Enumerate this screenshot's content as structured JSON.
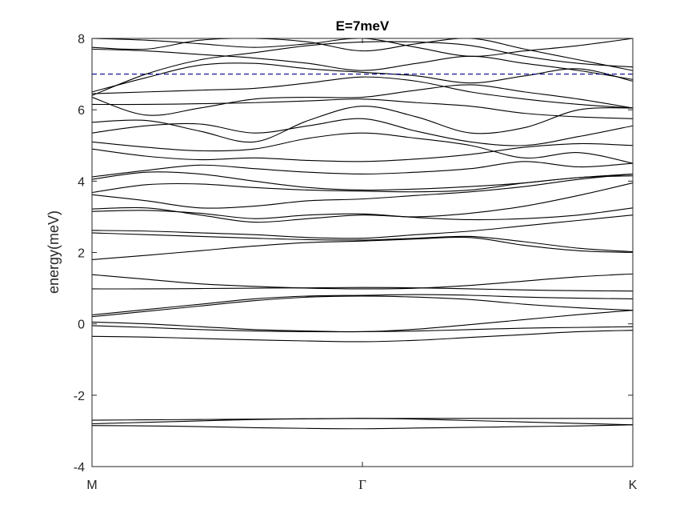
{
  "chart_data": {
    "type": "line",
    "title": "E=7meV",
    "xlabel": "",
    "ylabel": "energy(meV)",
    "ylim": [
      -4,
      8
    ],
    "yticks": [
      "-4",
      "-2",
      "0",
      "2",
      "4",
      "6",
      "8"
    ],
    "x_tick_labels": [
      "M",
      "Γ",
      "K"
    ],
    "xlim": [
      0,
      1
    ],
    "grid": false,
    "legend": "none",
    "reference_line": {
      "value": 7,
      "style": "dashed",
      "color": "#00008b"
    },
    "line_color": "#000000",
    "x": [
      0,
      0.1,
      0.2,
      0.3,
      0.4,
      0.5,
      0.6,
      0.7,
      0.8,
      0.9,
      1.0
    ],
    "series": [
      {
        "values": [
          -2.85,
          -2.86,
          -2.88,
          -2.91,
          -2.93,
          -2.94,
          -2.92,
          -2.9,
          -2.88,
          -2.86,
          -2.83
        ]
      },
      {
        "values": [
          -2.8,
          -2.76,
          -2.72,
          -2.68,
          -2.66,
          -2.65,
          -2.67,
          -2.71,
          -2.75,
          -2.79,
          -2.83
        ]
      },
      {
        "values": [
          -2.7,
          -2.69,
          -2.68,
          -2.67,
          -2.66,
          -2.65,
          -2.65,
          -2.65,
          -2.65,
          -2.65,
          -2.65
        ]
      },
      {
        "values": [
          -0.35,
          -0.37,
          -0.41,
          -0.45,
          -0.48,
          -0.5,
          -0.46,
          -0.38,
          -0.3,
          -0.22,
          -0.18
        ]
      },
      {
        "values": [
          -0.05,
          -0.1,
          -0.16,
          -0.2,
          -0.22,
          -0.22,
          -0.2,
          -0.16,
          -0.12,
          -0.1,
          -0.08
        ]
      },
      {
        "values": [
          0.05,
          0.0,
          -0.08,
          -0.16,
          -0.2,
          -0.22,
          -0.15,
          -0.02,
          0.12,
          0.26,
          0.38
        ]
      },
      {
        "values": [
          0.2,
          0.35,
          0.5,
          0.65,
          0.75,
          0.78,
          0.75,
          0.68,
          0.55,
          0.45,
          0.38
        ]
      },
      {
        "values": [
          0.25,
          0.4,
          0.55,
          0.7,
          0.78,
          0.8,
          0.82,
          0.8,
          0.75,
          0.72,
          0.7
        ]
      },
      {
        "values": [
          0.98,
          0.98,
          0.99,
          1.0,
          1.01,
          1.02,
          1.01,
          0.98,
          0.95,
          0.93,
          0.92
        ]
      },
      {
        "values": [
          1.38,
          1.25,
          1.12,
          1.05,
          1.0,
          0.98,
          1.0,
          1.08,
          1.2,
          1.32,
          1.4
        ]
      },
      {
        "values": [
          1.8,
          1.92,
          2.05,
          2.18,
          2.28,
          2.32,
          2.38,
          2.42,
          2.2,
          2.05,
          2.0
        ]
      },
      {
        "values": [
          2.55,
          2.5,
          2.45,
          2.4,
          2.36,
          2.35,
          2.4,
          2.45,
          2.3,
          2.12,
          2.02
        ]
      },
      {
        "values": [
          2.62,
          2.6,
          2.55,
          2.5,
          2.42,
          2.4,
          2.5,
          2.6,
          2.75,
          2.9,
          3.05
        ]
      },
      {
        "values": [
          3.15,
          3.18,
          3.1,
          2.95,
          3.05,
          3.08,
          2.98,
          2.92,
          2.95,
          3.05,
          3.25
        ]
      },
      {
        "values": [
          3.22,
          3.25,
          3.05,
          2.85,
          2.95,
          3.05,
          3.0,
          3.1,
          3.3,
          3.6,
          3.95
        ]
      },
      {
        "values": [
          3.62,
          3.45,
          3.25,
          3.3,
          3.45,
          3.5,
          3.6,
          3.7,
          3.85,
          4.05,
          4.2
        ]
      },
      {
        "values": [
          3.68,
          3.9,
          3.92,
          3.82,
          3.75,
          3.72,
          3.7,
          3.75,
          3.95,
          4.1,
          4.2
        ]
      },
      {
        "values": [
          4.05,
          4.25,
          4.2,
          4.0,
          3.82,
          3.75,
          3.78,
          3.85,
          3.95,
          4.1,
          4.15
        ]
      },
      {
        "values": [
          4.12,
          4.3,
          4.45,
          4.35,
          4.25,
          4.2,
          4.25,
          4.35,
          4.55,
          4.4,
          4.5
        ]
      },
      {
        "values": [
          4.9,
          4.7,
          4.6,
          4.65,
          4.58,
          4.55,
          4.62,
          4.75,
          4.95,
          5.05,
          5.0
        ]
      },
      {
        "values": [
          5.1,
          4.95,
          4.85,
          4.9,
          5.2,
          5.35,
          5.2,
          5.0,
          4.65,
          4.8,
          4.5
        ]
      },
      {
        "values": [
          5.35,
          5.55,
          5.6,
          5.35,
          5.55,
          5.75,
          5.4,
          5.1,
          5.0,
          5.25,
          5.55
        ]
      },
      {
        "values": [
          5.65,
          5.7,
          5.4,
          5.1,
          5.7,
          6.1,
          5.8,
          5.35,
          5.5,
          6.0,
          6.05
        ]
      },
      {
        "values": [
          6.15,
          6.15,
          6.17,
          6.2,
          6.25,
          6.3,
          6.2,
          6.1,
          5.9,
          5.8,
          5.75
        ]
      },
      {
        "values": [
          6.35,
          5.85,
          6.05,
          6.3,
          6.35,
          6.35,
          6.55,
          6.7,
          6.5,
          6.3,
          6.05
        ]
      },
      {
        "values": [
          6.45,
          6.5,
          6.55,
          6.6,
          6.75,
          6.92,
          6.8,
          6.5,
          6.3,
          6.15,
          6.05
        ]
      },
      {
        "values": [
          6.5,
          6.9,
          7.25,
          7.3,
          7.15,
          7.05,
          6.95,
          6.75,
          6.95,
          7.15,
          6.8
        ]
      },
      {
        "values": [
          7.7,
          7.65,
          7.55,
          7.45,
          7.3,
          7.1,
          7.3,
          7.5,
          7.3,
          7.1,
          6.85
        ]
      },
      {
        "values": [
          7.75,
          7.7,
          7.95,
          8.0,
          7.9,
          7.65,
          7.85,
          8.0,
          7.7,
          7.4,
          7.1
        ]
      },
      {
        "values": [
          6.4,
          7.0,
          7.4,
          7.6,
          7.8,
          7.9,
          7.9,
          7.8,
          7.5,
          7.3,
          7.2
        ]
      },
      {
        "values": [
          8.0,
          7.95,
          7.85,
          7.75,
          7.85,
          8.0,
          7.75,
          7.5,
          7.65,
          7.8,
          8.0
        ]
      }
    ]
  }
}
